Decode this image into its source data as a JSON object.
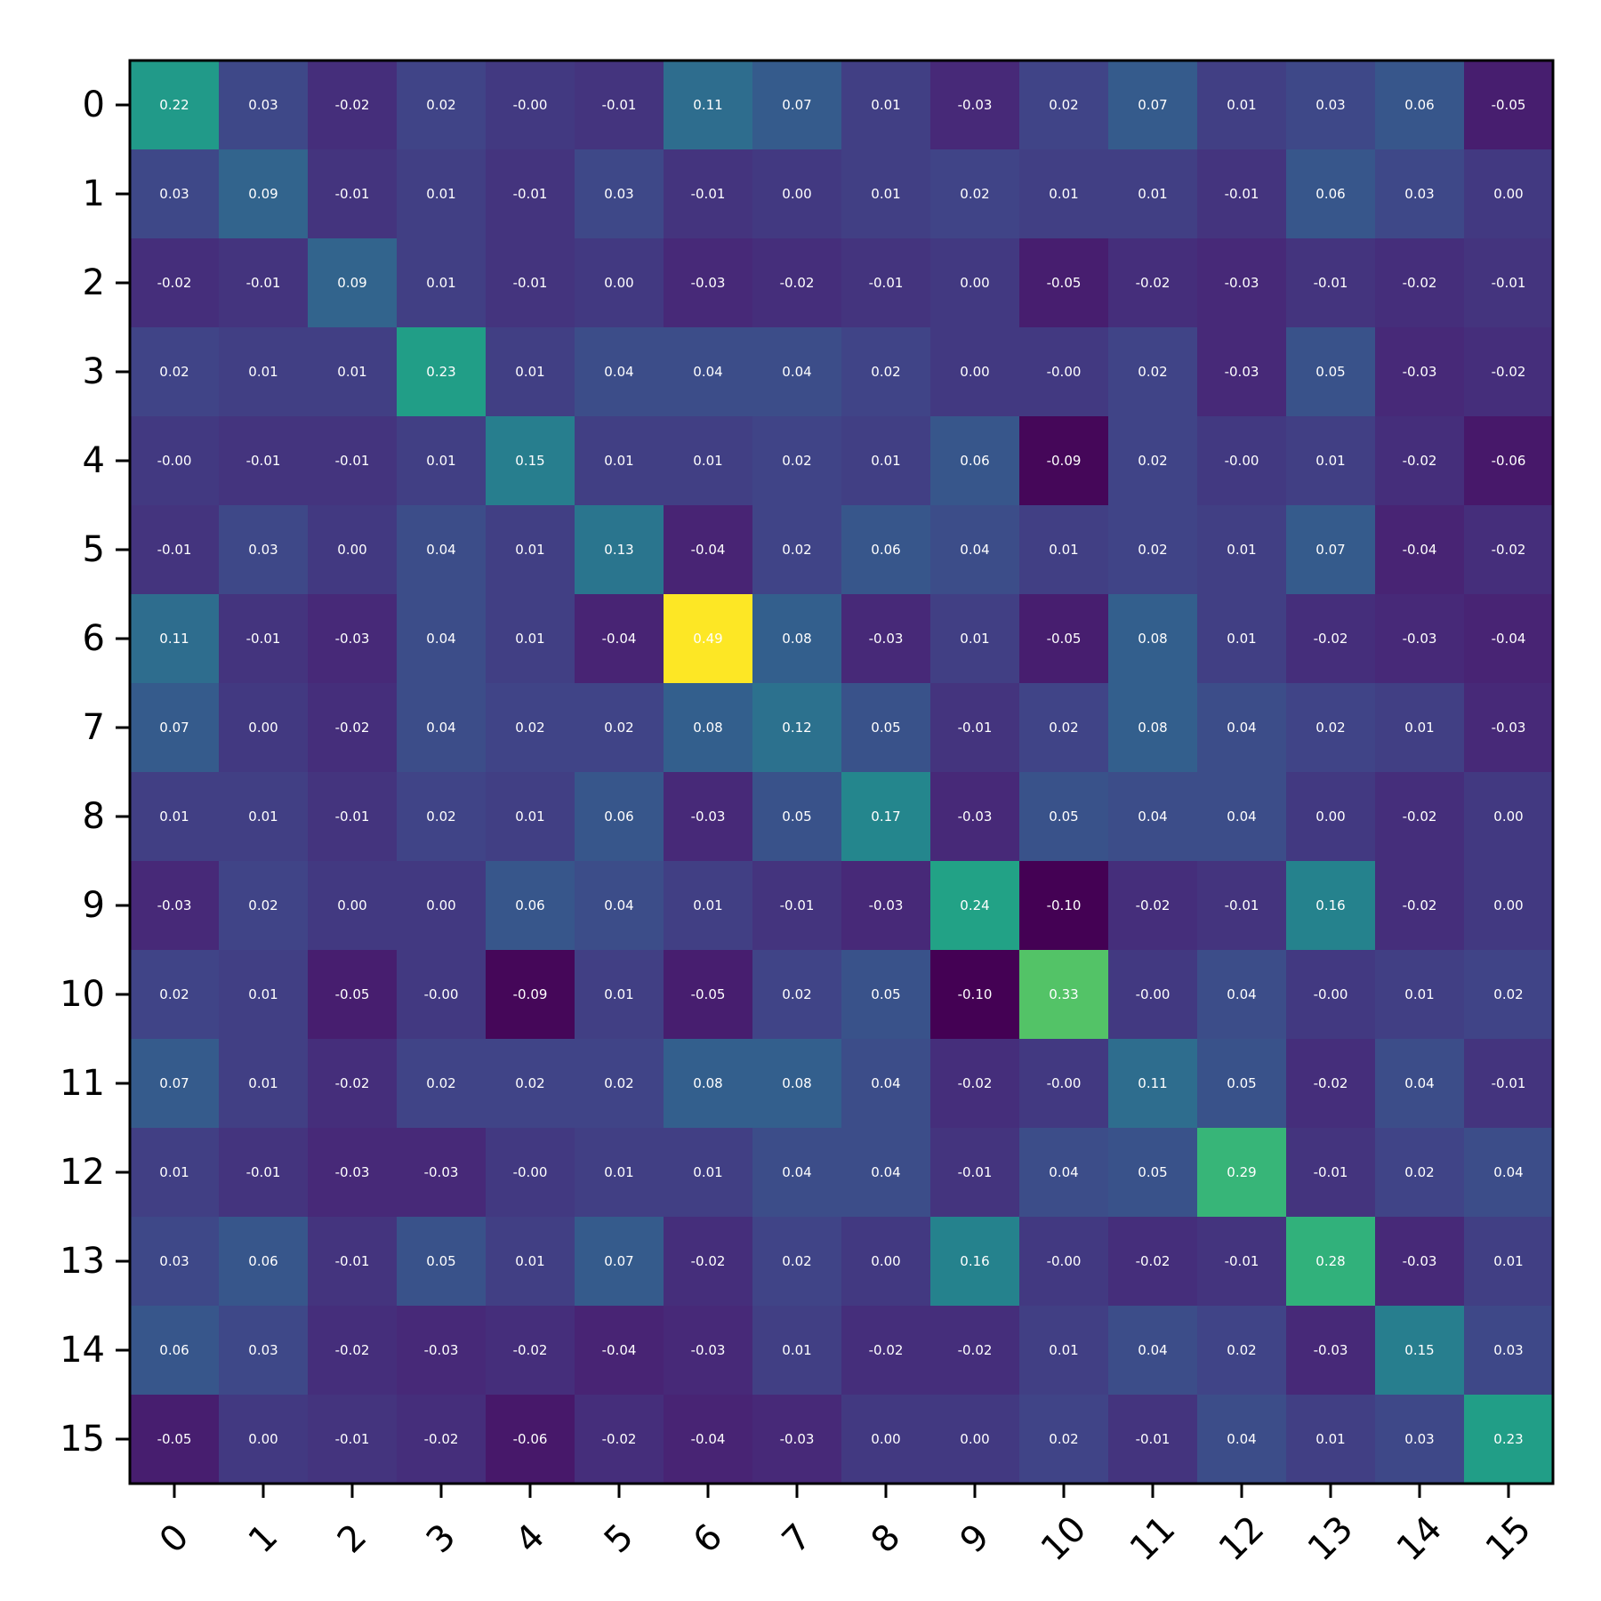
{
  "chart_data": {
    "type": "heatmap",
    "title": "",
    "xlabel": "",
    "ylabel": "",
    "x_categories": [
      "0",
      "1",
      "2",
      "3",
      "4",
      "5",
      "6",
      "7",
      "8",
      "9",
      "10",
      "11",
      "12",
      "13",
      "14",
      "15"
    ],
    "y_categories": [
      "0",
      "1",
      "2",
      "3",
      "4",
      "5",
      "6",
      "7",
      "8",
      "9",
      "10",
      "11",
      "12",
      "13",
      "14",
      "15"
    ],
    "x_tick_rotation_deg": 45,
    "colormap": "viridis",
    "value_range": [
      -0.1,
      0.49
    ],
    "value_format": "0.00",
    "grid": false,
    "values": [
      [
        0.22,
        0.03,
        -0.02,
        0.02,
        -0.0,
        -0.01,
        0.11,
        0.07,
        0.01,
        -0.03,
        0.02,
        0.07,
        0.01,
        0.03,
        0.06,
        -0.05
      ],
      [
        0.03,
        0.09,
        -0.01,
        0.01,
        -0.01,
        0.03,
        -0.01,
        0.0,
        0.01,
        0.02,
        0.01,
        0.01,
        -0.01,
        0.06,
        0.03,
        0.0
      ],
      [
        -0.02,
        -0.01,
        0.09,
        0.01,
        -0.01,
        0.0,
        -0.03,
        -0.02,
        -0.01,
        0.0,
        -0.05,
        -0.02,
        -0.03,
        -0.01,
        -0.02,
        -0.01
      ],
      [
        0.02,
        0.01,
        0.01,
        0.23,
        0.01,
        0.04,
        0.04,
        0.04,
        0.02,
        0.0,
        -0.0,
        0.02,
        -0.03,
        0.05,
        -0.03,
        -0.02
      ],
      [
        -0.0,
        -0.01,
        -0.01,
        0.01,
        0.15,
        0.01,
        0.01,
        0.02,
        0.01,
        0.06,
        -0.09,
        0.02,
        -0.0,
        0.01,
        -0.02,
        -0.06
      ],
      [
        -0.01,
        0.03,
        0.0,
        0.04,
        0.01,
        0.13,
        -0.04,
        0.02,
        0.06,
        0.04,
        0.01,
        0.02,
        0.01,
        0.07,
        -0.04,
        -0.02
      ],
      [
        0.11,
        -0.01,
        -0.03,
        0.04,
        0.01,
        -0.04,
        0.49,
        0.08,
        -0.03,
        0.01,
        -0.05,
        0.08,
        0.01,
        -0.02,
        -0.03,
        -0.04
      ],
      [
        0.07,
        0.0,
        -0.02,
        0.04,
        0.02,
        0.02,
        0.08,
        0.12,
        0.05,
        -0.01,
        0.02,
        0.08,
        0.04,
        0.02,
        0.01,
        -0.03
      ],
      [
        0.01,
        0.01,
        -0.01,
        0.02,
        0.01,
        0.06,
        -0.03,
        0.05,
        0.17,
        -0.03,
        0.05,
        0.04,
        0.04,
        0.0,
        -0.02,
        0.0
      ],
      [
        -0.03,
        0.02,
        0.0,
        0.0,
        0.06,
        0.04,
        0.01,
        -0.01,
        -0.03,
        0.24,
        -0.1,
        -0.02,
        -0.01,
        0.16,
        -0.02,
        0.0
      ],
      [
        0.02,
        0.01,
        -0.05,
        -0.0,
        -0.09,
        0.01,
        -0.05,
        0.02,
        0.05,
        -0.1,
        0.33,
        -0.0,
        0.04,
        -0.0,
        0.01,
        0.02
      ],
      [
        0.07,
        0.01,
        -0.02,
        0.02,
        0.02,
        0.02,
        0.08,
        0.08,
        0.04,
        -0.02,
        -0.0,
        0.11,
        0.05,
        -0.02,
        0.04,
        -0.01
      ],
      [
        0.01,
        -0.01,
        -0.03,
        -0.03,
        -0.0,
        0.01,
        0.01,
        0.04,
        0.04,
        -0.01,
        0.04,
        0.05,
        0.29,
        -0.01,
        0.02,
        0.04
      ],
      [
        0.03,
        0.06,
        -0.01,
        0.05,
        0.01,
        0.07,
        -0.02,
        0.02,
        0.0,
        0.16,
        -0.0,
        -0.02,
        -0.01,
        0.28,
        -0.03,
        0.01
      ],
      [
        0.06,
        0.03,
        -0.02,
        -0.03,
        -0.02,
        -0.04,
        -0.03,
        0.01,
        -0.02,
        -0.02,
        0.01,
        0.04,
        0.02,
        -0.03,
        0.15,
        0.03
      ],
      [
        -0.05,
        0.0,
        -0.01,
        -0.02,
        -0.06,
        -0.02,
        -0.04,
        -0.03,
        0.0,
        0.0,
        0.02,
        -0.01,
        0.04,
        0.01,
        0.03,
        0.23
      ]
    ],
    "cell_labels": [
      [
        "0.22",
        "0.03",
        "-0.02",
        "0.02",
        "-0.00",
        "-0.01",
        "0.11",
        "0.07",
        "0.01",
        "-0.03",
        "0.02",
        "0.07",
        "0.01",
        "0.03",
        "0.06",
        "-0.05"
      ],
      [
        "0.03",
        "0.09",
        "-0.01",
        "0.01",
        "-0.01",
        "0.03",
        "-0.01",
        "0.00",
        "0.01",
        "0.02",
        "0.01",
        "0.01",
        "-0.01",
        "0.06",
        "0.03",
        "0.00"
      ],
      [
        "-0.02",
        "-0.01",
        "0.09",
        "0.01",
        "-0.01",
        "0.00",
        "-0.03",
        "-0.02",
        "-0.01",
        "0.00",
        "-0.05",
        "-0.02",
        "-0.03",
        "-0.01",
        "-0.02",
        "-0.01"
      ],
      [
        "0.02",
        "0.01",
        "0.01",
        "0.23",
        "0.01",
        "0.04",
        "0.04",
        "0.04",
        "0.02",
        "0.00",
        "-0.00",
        "0.02",
        "-0.03",
        "0.05",
        "-0.03",
        "-0.02"
      ],
      [
        "-0.00",
        "-0.01",
        "-0.01",
        "0.01",
        "0.15",
        "0.01",
        "0.01",
        "0.02",
        "0.01",
        "0.06",
        "-0.09",
        "0.02",
        "-0.00",
        "0.01",
        "-0.02",
        "-0.06"
      ],
      [
        "-0.01",
        "0.03",
        "0.00",
        "0.04",
        "0.01",
        "0.13",
        "-0.04",
        "0.02",
        "0.06",
        "0.04",
        "0.01",
        "0.02",
        "0.01",
        "0.07",
        "-0.04",
        "-0.02"
      ],
      [
        "0.11",
        "-0.01",
        "-0.03",
        "0.04",
        "0.01",
        "-0.04",
        "0.49",
        "0.08",
        "-0.03",
        "0.01",
        "-0.05",
        "0.08",
        "0.01",
        "-0.02",
        "-0.03",
        "-0.04"
      ],
      [
        "0.07",
        "0.00",
        "-0.02",
        "0.04",
        "0.02",
        "0.02",
        "0.08",
        "0.12",
        "0.05",
        "-0.01",
        "0.02",
        "0.08",
        "0.04",
        "0.02",
        "0.01",
        "-0.03"
      ],
      [
        "0.01",
        "0.01",
        "-0.01",
        "0.02",
        "0.01",
        "0.06",
        "-0.03",
        "0.05",
        "0.17",
        "-0.03",
        "0.05",
        "0.04",
        "0.04",
        "0.00",
        "-0.02",
        "0.00"
      ],
      [
        "-0.03",
        "0.02",
        "0.00",
        "0.00",
        "0.06",
        "0.04",
        "0.01",
        "-0.01",
        "-0.03",
        "0.24",
        "-0.10",
        "-0.02",
        "-0.01",
        "0.16",
        "-0.02",
        "0.00"
      ],
      [
        "0.02",
        "0.01",
        "-0.05",
        "-0.00",
        "-0.09",
        "0.01",
        "-0.05",
        "0.02",
        "0.05",
        "-0.10",
        "0.33",
        "-0.00",
        "0.04",
        "-0.00",
        "0.01",
        "0.02"
      ],
      [
        "0.07",
        "0.01",
        "-0.02",
        "0.02",
        "0.02",
        "0.02",
        "0.08",
        "0.08",
        "0.04",
        "-0.02",
        "-0.00",
        "0.11",
        "0.05",
        "-0.02",
        "0.04",
        "-0.01"
      ],
      [
        "0.01",
        "-0.01",
        "-0.03",
        "-0.03",
        "-0.00",
        "0.01",
        "0.01",
        "0.04",
        "0.04",
        "-0.01",
        "0.04",
        "0.05",
        "0.29",
        "-0.01",
        "0.02",
        "0.04"
      ],
      [
        "0.03",
        "0.06",
        "-0.01",
        "0.05",
        "0.01",
        "0.07",
        "-0.02",
        "0.02",
        "0.00",
        "0.16",
        "-0.00",
        "-0.02",
        "-0.01",
        "0.28",
        "-0.03",
        "0.01"
      ],
      [
        "0.06",
        "0.03",
        "-0.02",
        "-0.03",
        "-0.02",
        "-0.04",
        "-0.03",
        "0.01",
        "-0.02",
        "-0.02",
        "0.01",
        "0.04",
        "0.02",
        "-0.03",
        "0.15",
        "0.03"
      ],
      [
        "-0.05",
        "0.00",
        "-0.01",
        "-0.02",
        "-0.06",
        "-0.02",
        "-0.04",
        "-0.03",
        "0.00",
        "0.00",
        "0.02",
        "-0.01",
        "0.04",
        "0.01",
        "0.03",
        "0.23"
      ]
    ]
  },
  "colors": {
    "background": "#ffffff",
    "axis": "#000000",
    "cell_text": "#ffffff"
  }
}
